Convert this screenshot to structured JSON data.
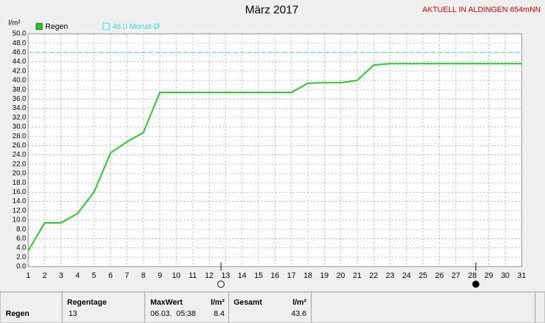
{
  "chart_data": {
    "type": "line",
    "title": "März 2017",
    "subtitle": "AKTUELL IN ALDINGEN 654mNN",
    "y_label": "l/m²",
    "x": [
      1,
      2,
      3,
      4,
      5,
      6,
      7,
      8,
      9,
      10,
      11,
      12,
      13,
      14,
      15,
      16,
      17,
      18,
      19,
      20,
      21,
      22,
      23,
      24,
      25,
      26,
      27,
      28,
      29,
      30,
      31
    ],
    "series": [
      {
        "name": "Regen",
        "color": "#22cc22",
        "values": [
          3.4,
          9.4,
          9.4,
          11.4,
          16.0,
          24.4,
          26.8,
          28.8,
          37.4,
          37.4,
          37.4,
          37.4,
          37.4,
          37.4,
          37.4,
          37.4,
          37.4,
          39.4,
          39.5,
          39.5,
          40.0,
          43.3,
          43.6,
          43.6,
          43.6,
          43.6,
          43.6,
          43.6,
          43.6,
          43.6,
          43.6
        ]
      }
    ],
    "reference_line": {
      "value": 46,
      "label": "46.0 Monat-Ø",
      "color": "#33dddd"
    },
    "xlim": [
      1,
      31
    ],
    "xticks": [
      1,
      2,
      3,
      4,
      5,
      6,
      7,
      8,
      9,
      10,
      11,
      12,
      13,
      14,
      15,
      16,
      17,
      18,
      19,
      20,
      21,
      22,
      23,
      24,
      25,
      26,
      27,
      28,
      29,
      30,
      31
    ],
    "ylim": [
      0,
      50
    ],
    "yticks": [
      {
        "value": 0,
        "label": "0.0"
      },
      {
        "value": 2,
        "label": "2.0"
      },
      {
        "value": 4,
        "label": "4.0"
      },
      {
        "value": 6,
        "label": "6.0"
      },
      {
        "value": 8,
        "label": "8.0"
      },
      {
        "value": 10,
        "label": "10.0"
      },
      {
        "value": 12,
        "label": "12.0"
      },
      {
        "value": 14,
        "label": "14.0"
      },
      {
        "value": 16,
        "label": "16.0"
      },
      {
        "value": 18,
        "label": "18.0"
      },
      {
        "value": 20,
        "label": "20.0"
      },
      {
        "value": 22,
        "label": "22.0"
      },
      {
        "value": 24,
        "label": "24.0"
      },
      {
        "value": 26,
        "label": "26.0"
      },
      {
        "value": 28,
        "label": "28.0"
      },
      {
        "value": 30,
        "label": "30.0"
      },
      {
        "value": 32,
        "label": "32.0"
      },
      {
        "value": 34,
        "label": "34.0"
      },
      {
        "value": 36,
        "label": "36.0"
      },
      {
        "value": 38,
        "label": "38.0"
      },
      {
        "value": 40,
        "label": "40.0"
      },
      {
        "value": 42,
        "label": "42.0"
      },
      {
        "value": 44,
        "label": "44.0"
      },
      {
        "value": 46,
        "label": "46.0"
      },
      {
        "value": 48,
        "label": "48.0"
      },
      {
        "value": 50,
        "label": "50.0"
      }
    ],
    "grid": true
  },
  "table": {
    "row_label": "Regen",
    "headers": [
      "Regentage",
      "MaxWert",
      "l/m²",
      "Gesamt",
      "l/m²"
    ],
    "values": [
      "13",
      "06.03.  05:38",
      "8.4",
      "43.6"
    ]
  }
}
